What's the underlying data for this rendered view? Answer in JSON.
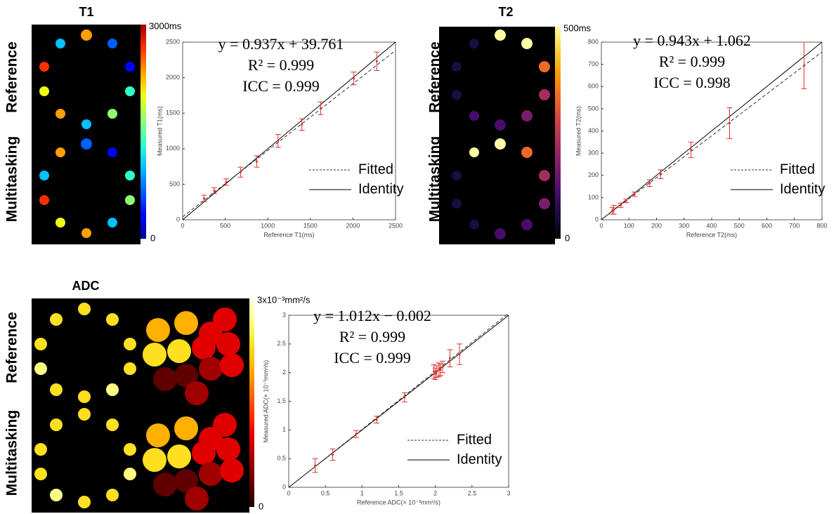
{
  "chart_data": [
    {
      "type": "scatter",
      "title": "T1",
      "row_labels": [
        "Reference",
        "Multitasking"
      ],
      "colormap": "jet",
      "colorbar": {
        "max_label": "3000ms",
        "min_label": "0"
      },
      "xlabel": "Reference T1(ms)",
      "ylabel": "Measured T1(ms)",
      "xlim": [
        0,
        2500
      ],
      "ylim": [
        0,
        2500
      ],
      "xticks": [
        0,
        500,
        1000,
        1500,
        2000,
        2500
      ],
      "yticks": [
        0,
        500,
        1000,
        1500,
        2000,
        2500
      ],
      "equation": [
        "y = 0.937x + 39.761",
        "R² = 0.999",
        "ICC = 0.999"
      ],
      "fit": {
        "name": "Fitted",
        "slope": 0.937,
        "intercept": 39.761
      },
      "identity": {
        "name": "Identity"
      },
      "points": {
        "color": "#e03030",
        "x": [
          250,
          370,
          510,
          680,
          870,
          1120,
          1400,
          1620,
          2010,
          2280
        ],
        "values": [
          300,
          410,
          530,
          670,
          820,
          1110,
          1340,
          1570,
          1990,
          2230
        ],
        "errors": [
          45,
          40,
          45,
          70,
          80,
          90,
          80,
          90,
          90,
          130
        ]
      }
    },
    {
      "type": "scatter",
      "title": "T2",
      "row_labels": [
        "Reference",
        "Multitasking"
      ],
      "colormap": "inferno",
      "colorbar": {
        "max_label": "500ms",
        "min_label": "0"
      },
      "xlabel": "Reference T2(ms)",
      "ylabel": "Measured T2(ms)",
      "xlim": [
        0,
        800
      ],
      "ylim": [
        0,
        800
      ],
      "xticks": [
        0,
        100,
        200,
        300,
        400,
        500,
        600,
        700,
        800
      ],
      "yticks": [
        0,
        100,
        200,
        300,
        400,
        500,
        600,
        700,
        800
      ],
      "equation": [
        "y = 0.943x + 1.062",
        "R² = 0.999",
        "ICC = 0.998"
      ],
      "fit": {
        "name": "Fitted",
        "slope": 0.943,
        "intercept": 1.062
      },
      "identity": {
        "name": "Identity"
      },
      "points": {
        "color": "#e03030",
        "x": [
          40,
          45,
          70,
          90,
          120,
          175,
          215,
          325,
          465,
          735
        ],
        "values": [
          40,
          45,
          65,
          85,
          115,
          165,
          205,
          315,
          435,
          695
        ],
        "errors": [
          15,
          20,
          10,
          8,
          10,
          15,
          20,
          35,
          70,
          105
        ]
      }
    },
    {
      "type": "scatter",
      "title": "ADC",
      "row_labels": [
        "Reference",
        "Multitasking"
      ],
      "colormap": "hot",
      "colorbar": {
        "max_label": "3x10⁻³mm²/s",
        "min_label": "0"
      },
      "xlabel": "Reference ADC(× 10⁻³mm²/s)",
      "ylabel": "Measured ADC(× 10⁻³mm²/s)",
      "xlim": [
        0,
        3
      ],
      "ylim": [
        0,
        3
      ],
      "xticks": [
        0,
        0.5,
        1,
        1.5,
        2,
        2.5,
        3
      ],
      "yticks": [
        0,
        0.5,
        1,
        1.5,
        2,
        2.5,
        3
      ],
      "equation": [
        "y = 1.012x − 0.002",
        "R² = 0.999",
        "ICC = 0.999"
      ],
      "fit": {
        "name": "Fitted",
        "slope": 1.012,
        "intercept": -0.002
      },
      "identity": {
        "name": "Identity"
      },
      "points": {
        "color": "#e03030",
        "x": [
          0.36,
          0.6,
          0.92,
          1.2,
          1.58,
          1.98,
          2.0,
          2.02,
          2.05,
          2.07,
          2.1,
          2.2,
          2.33
        ],
        "values": [
          0.38,
          0.57,
          0.93,
          1.18,
          1.57,
          2.02,
          1.98,
          2.02,
          2.05,
          2.05,
          2.1,
          2.25,
          2.32
        ],
        "errors": [
          0.12,
          0.1,
          0.06,
          0.06,
          0.08,
          0.12,
          0.1,
          0.1,
          0.12,
          0.1,
          0.1,
          0.15,
          0.18
        ]
      }
    }
  ]
}
